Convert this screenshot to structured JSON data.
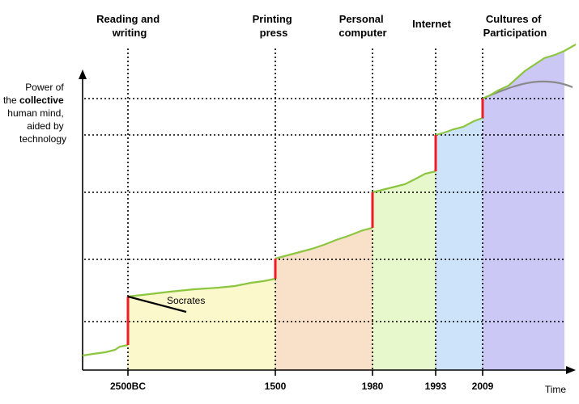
{
  "eras": [
    {
      "key": "reading",
      "lines": [
        "Reading and",
        "writing"
      ],
      "tick": "2500BC",
      "color": "#fbf8cc"
    },
    {
      "key": "printing",
      "lines": [
        "Printing",
        "press"
      ],
      "tick": "1500",
      "color": "#f9e0c8"
    },
    {
      "key": "pc",
      "lines": [
        "Personal",
        "computer"
      ],
      "tick": "1980",
      "color": "#e6f8cc"
    },
    {
      "key": "internet",
      "lines": [
        "Internet"
      ],
      "tick": "1993",
      "color": "#cde3fa"
    },
    {
      "key": "participation",
      "lines": [
        "Cultures of",
        "Participation"
      ],
      "tick": "2009",
      "color": "#cbc8f6"
    }
  ],
  "y_axis_title": {
    "line1": "Power of",
    "line2_prefix": "the ",
    "line2_bold": "collective",
    "line3": "human mind,",
    "line4": "aided by",
    "line5": "technology"
  },
  "x_axis_title": "Time",
  "annotation": "Socrates",
  "colors": {
    "growth_curve": "#8cc63f",
    "jump": "#ee1c24",
    "plateau_curve": "#8a8a8a",
    "axis": "#000000",
    "grid": "#000000",
    "annotation_line": "#000000"
  }
}
